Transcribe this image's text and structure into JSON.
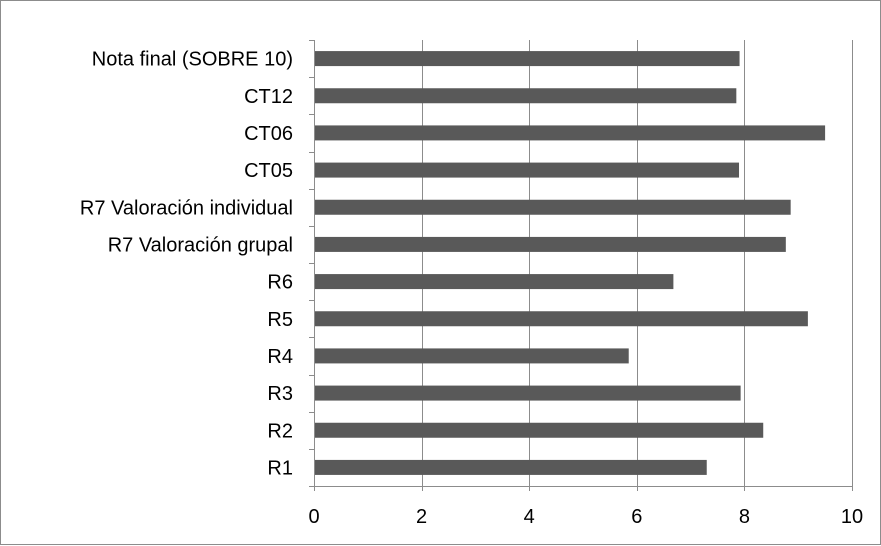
{
  "chart_data": {
    "type": "bar",
    "orientation": "horizontal",
    "title": "",
    "xlabel": "",
    "ylabel": "",
    "xlim": [
      0,
      10
    ],
    "xticks": [
      0,
      2,
      4,
      6,
      8,
      10
    ],
    "grid": true,
    "legend": "none",
    "bar_color": "#595959",
    "categories": [
      "R1",
      "R2",
      "R3",
      "R4",
      "R5",
      "R6",
      "R7 Valoración grupal",
      "R7 Valoración individual",
      "CT05",
      "CT06",
      "CT12",
      "Nota final (SOBRE 10)"
    ],
    "values": [
      7.3,
      8.35,
      7.93,
      5.85,
      9.18,
      6.68,
      8.77,
      8.86,
      7.9,
      9.5,
      7.85,
      7.91
    ]
  }
}
